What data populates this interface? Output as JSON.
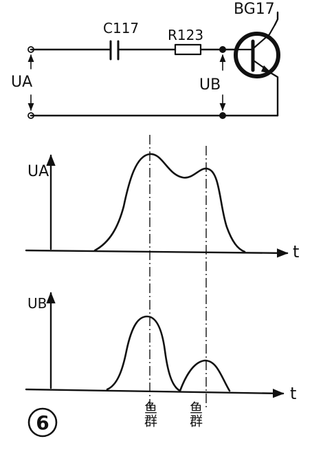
{
  "circuit": {
    "capacitor_label": "C117",
    "resistor_label": "R123",
    "transistor_label": "BG17",
    "input_voltage_label": "UA",
    "output_voltage_label": "UB"
  },
  "plots": {
    "top_axis_label": "UA",
    "bottom_axis_label": "UB",
    "time_label": "t",
    "marker_label_1": "鱼群",
    "marker_label_2": "鱼群"
  },
  "figure_number": "6"
}
